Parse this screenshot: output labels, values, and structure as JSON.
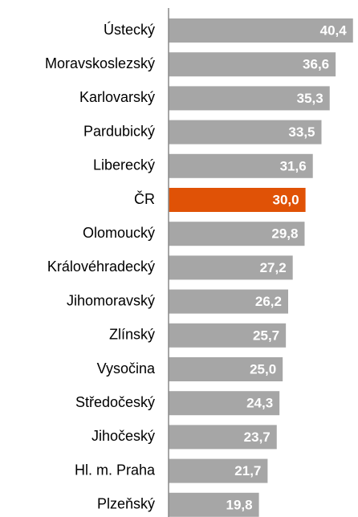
{
  "chart_data": {
    "type": "barh",
    "categories": [
      "Ústecký",
      "Moravskoslezský",
      "Karlovarský",
      "Pardubický",
      "Liberecký",
      "ČR",
      "Olomoucký",
      "Královéhradecký",
      "Jihomoravský",
      "Zlínský",
      "Vysočina",
      "Středočeský",
      "Jihočeský",
      "Hl. m. Praha",
      "Plzeňský"
    ],
    "values": [
      40.4,
      36.6,
      35.3,
      33.5,
      31.6,
      30.0,
      29.8,
      27.2,
      26.2,
      25.7,
      25.0,
      24.3,
      23.7,
      21.7,
      19.8
    ],
    "value_labels": [
      "40,4",
      "36,6",
      "35,3",
      "33,5",
      "31,6",
      "30,0",
      "29,8",
      "27,2",
      "26,2",
      "25,7",
      "25,0",
      "24,3",
      "23,7",
      "21,7",
      "19,8"
    ],
    "colors": [
      "#a6a6a6",
      "#a6a6a6",
      "#a6a6a6",
      "#a6a6a6",
      "#a6a6a6",
      "#e05206",
      "#a6a6a6",
      "#a6a6a6",
      "#a6a6a6",
      "#a6a6a6",
      "#a6a6a6",
      "#a6a6a6",
      "#a6a6a6",
      "#a6a6a6",
      "#a6a6a6"
    ],
    "xlim": [
      0,
      41.5
    ]
  }
}
